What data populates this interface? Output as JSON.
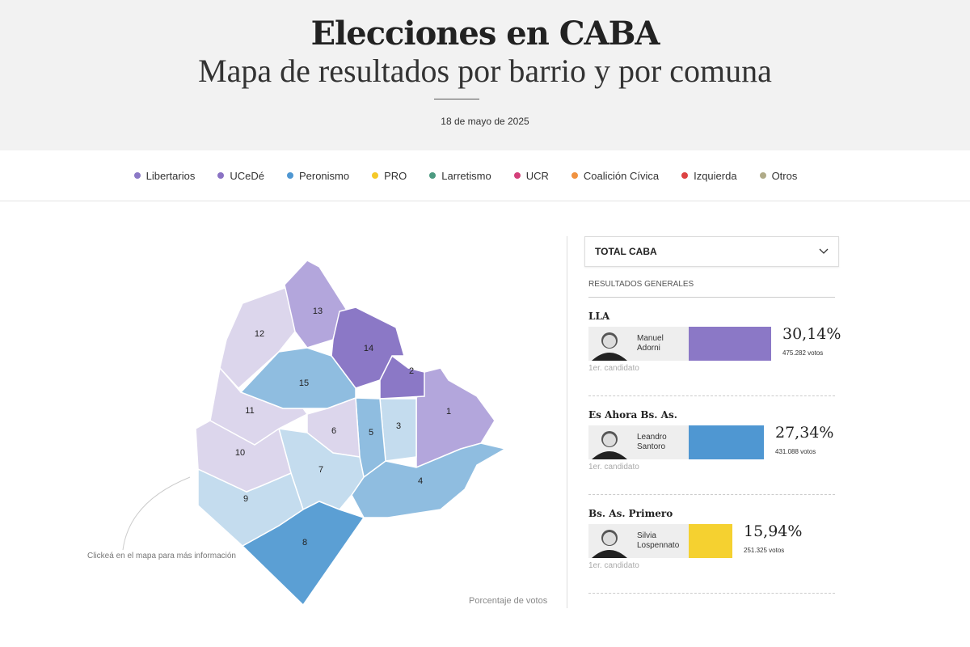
{
  "header": {
    "title": "Elecciones en CABA",
    "subtitle": "Mapa de resultados por barrio y por comuna",
    "date": "18 de mayo de 2025"
  },
  "legend": [
    {
      "label": "Libertarios",
      "color": "#8b78c6"
    },
    {
      "label": "UCeDé",
      "color": "#8a72c4"
    },
    {
      "label": "Peronismo",
      "color": "#4f97d2"
    },
    {
      "label": "PRO",
      "color": "#f5c928"
    },
    {
      "label": "Larretismo",
      "color": "#4c9a80"
    },
    {
      "label": "UCR",
      "color": "#d43f7a"
    },
    {
      "label": "Coalición Cívica",
      "color": "#f09240"
    },
    {
      "label": "Izquierda",
      "color": "#dd4242"
    },
    {
      "label": "Otros",
      "color": "#b0ab88"
    }
  ],
  "map": {
    "hint": "Clickeá en el mapa para más información",
    "footer": "Porcentaje de votos",
    "comunas": [
      {
        "n": "1",
        "color": "#b3a6dc"
      },
      {
        "n": "2",
        "color": "#8b78c6"
      },
      {
        "n": "3",
        "color": "#c4dcee"
      },
      {
        "n": "4",
        "color": "#8fbde0"
      },
      {
        "n": "5",
        "color": "#8fbde0"
      },
      {
        "n": "6",
        "color": "#dcd6ec"
      },
      {
        "n": "7",
        "color": "#c4dcee"
      },
      {
        "n": "8",
        "color": "#5b9fd4"
      },
      {
        "n": "9",
        "color": "#c4dcee"
      },
      {
        "n": "10",
        "color": "#dcd6ec"
      },
      {
        "n": "11",
        "color": "#dcd6ec"
      },
      {
        "n": "12",
        "color": "#dcd6ec"
      },
      {
        "n": "13",
        "color": "#b3a6dc"
      },
      {
        "n": "14",
        "color": "#8b78c6"
      },
      {
        "n": "15",
        "color": "#8fbde0"
      }
    ]
  },
  "panel": {
    "selector": "TOTAL CABA",
    "section": "RESULTADOS GENERALES",
    "candidates": [
      {
        "party": "LLA",
        "name1": "Manuel",
        "name2": "Adorni",
        "pct": "30,14%",
        "pct_value": 30.14,
        "votes": "475.282 votos",
        "rank": "1er. candidato",
        "color": "#8b78c6"
      },
      {
        "party": "Es Ahora Bs. As.",
        "name1": "Leandro",
        "name2": "Santoro",
        "pct": "27,34%",
        "pct_value": 27.34,
        "votes": "431.088 votos",
        "rank": "1er. candidato",
        "color": "#4f97d2"
      },
      {
        "party": "Bs. As. Primero",
        "name1": "Silvia",
        "name2": "Lospennato",
        "pct": "15,94%",
        "pct_value": 15.94,
        "votes": "251.325 votos",
        "rank": "1er. candidato",
        "color": "#f5d130"
      }
    ]
  }
}
